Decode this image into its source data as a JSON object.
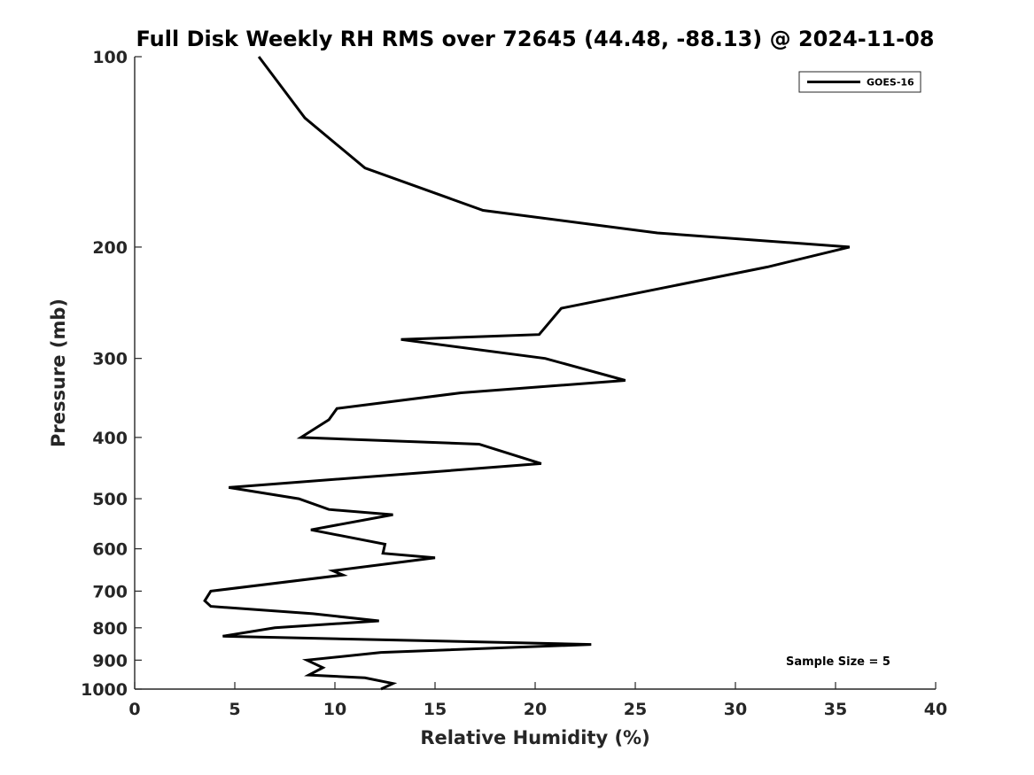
{
  "chart_data": {
    "type": "line",
    "title": "Full Disk Weekly RH RMS over 72645 (44.48, -88.13) @ 2024-11-08",
    "xlabel": "Relative Humidity (%)",
    "ylabel": "Pressure (mb)",
    "xlim": [
      0,
      40
    ],
    "ylim": [
      100,
      1000
    ],
    "yscale": "log",
    "y_reversed": true,
    "x_ticks": [
      0,
      5,
      10,
      15,
      20,
      25,
      30,
      35,
      40
    ],
    "y_ticks": [
      100,
      200,
      300,
      400,
      500,
      600,
      700,
      800,
      900,
      1000
    ],
    "grid": false,
    "legend_position": "top-right",
    "annotation": "Sample Size = 5",
    "series": [
      {
        "name": "GOES-16",
        "color": "#000000",
        "points": [
          [
            6.2,
            100
          ],
          [
            8.5,
            125
          ],
          [
            11.5,
            150
          ],
          [
            17.4,
            175
          ],
          [
            26.1,
            190
          ],
          [
            35.7,
            200
          ],
          [
            31.6,
            215
          ],
          [
            21.3,
            250
          ],
          [
            20.2,
            275
          ],
          [
            13.3,
            280
          ],
          [
            20.5,
            300
          ],
          [
            24.5,
            325
          ],
          [
            16.3,
            340
          ],
          [
            10.1,
            360
          ],
          [
            9.7,
            375
          ],
          [
            8.3,
            400
          ],
          [
            17.2,
            410
          ],
          [
            20.3,
            440
          ],
          [
            4.7,
            480
          ],
          [
            8.2,
            500
          ],
          [
            9.7,
            520
          ],
          [
            12.9,
            530
          ],
          [
            8.8,
            560
          ],
          [
            12.5,
            590
          ],
          [
            12.4,
            610
          ],
          [
            15.0,
            620
          ],
          [
            9.9,
            650
          ],
          [
            10.4,
            660
          ],
          [
            3.8,
            700
          ],
          [
            3.5,
            725
          ],
          [
            3.8,
            740
          ],
          [
            8.9,
            760
          ],
          [
            12.2,
            780
          ],
          [
            7.0,
            800
          ],
          [
            4.4,
            825
          ],
          [
            22.8,
            850
          ],
          [
            12.3,
            875
          ],
          [
            8.6,
            900
          ],
          [
            9.4,
            925
          ],
          [
            8.7,
            950
          ],
          [
            11.5,
            960
          ],
          [
            12.9,
            980
          ],
          [
            12.3,
            1000
          ]
        ]
      }
    ]
  }
}
